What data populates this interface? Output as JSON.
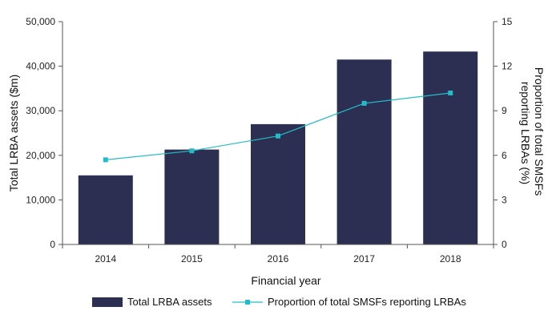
{
  "chart_data": {
    "type": "bar",
    "categories": [
      "2014",
      "2015",
      "2016",
      "2017",
      "2018"
    ],
    "series": [
      {
        "name": "Total LRBA assets",
        "kind": "bar",
        "axis": "left",
        "color": "#2c2f52",
        "values": [
          15500,
          21300,
          27000,
          41500,
          43300
        ]
      },
      {
        "name": "Proportion of total SMSFs reporting LRBAs",
        "kind": "line",
        "axis": "right",
        "color": "#22bcc8",
        "marker": "square",
        "values": [
          5.7,
          6.3,
          7.3,
          9.5,
          10.2
        ]
      }
    ],
    "xlabel": "Financial year",
    "ylabel": "Total LRBA assets ($m)",
    "y2label": "Proportion of total SMSFs reporting LRBAs (%)",
    "y2label_lines": [
      "Proportion of total SMSFs",
      "reporting LRBAs (%)"
    ],
    "ylim": [
      0,
      50000
    ],
    "y2lim": [
      0,
      15
    ],
    "yticks": [
      "0",
      "10,000",
      "20,000",
      "30,000",
      "40,000",
      "50,000"
    ],
    "y2ticks": [
      "0",
      "3",
      "6",
      "9",
      "12",
      "15"
    ],
    "grid": false,
    "legend_position": "bottom"
  }
}
